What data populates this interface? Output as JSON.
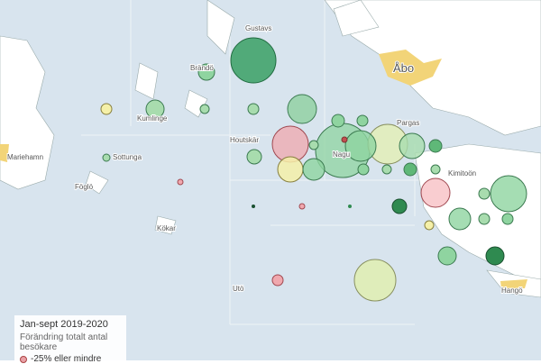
{
  "places": {
    "gustavs": "Gustavs",
    "abo": "Åbo",
    "brando": "Brändö",
    "kumlinge": "Kumlinge",
    "pargas": "Pargas",
    "houtskar": "Houtskär",
    "nagu": "Nagu",
    "mariehamn": "Mariehamn",
    "sottunga": "Sottunga",
    "foglo": "Föglö",
    "kimitoon": "Kimitoön",
    "kokar": "Kökar",
    "uto": "Utö",
    "hango": "Hangö"
  },
  "legend": {
    "title": "Jan-sept 2019-2020",
    "subtitle": "Förändring totalt antal besökare",
    "items": [
      "-25% eller mindre"
    ]
  }
}
